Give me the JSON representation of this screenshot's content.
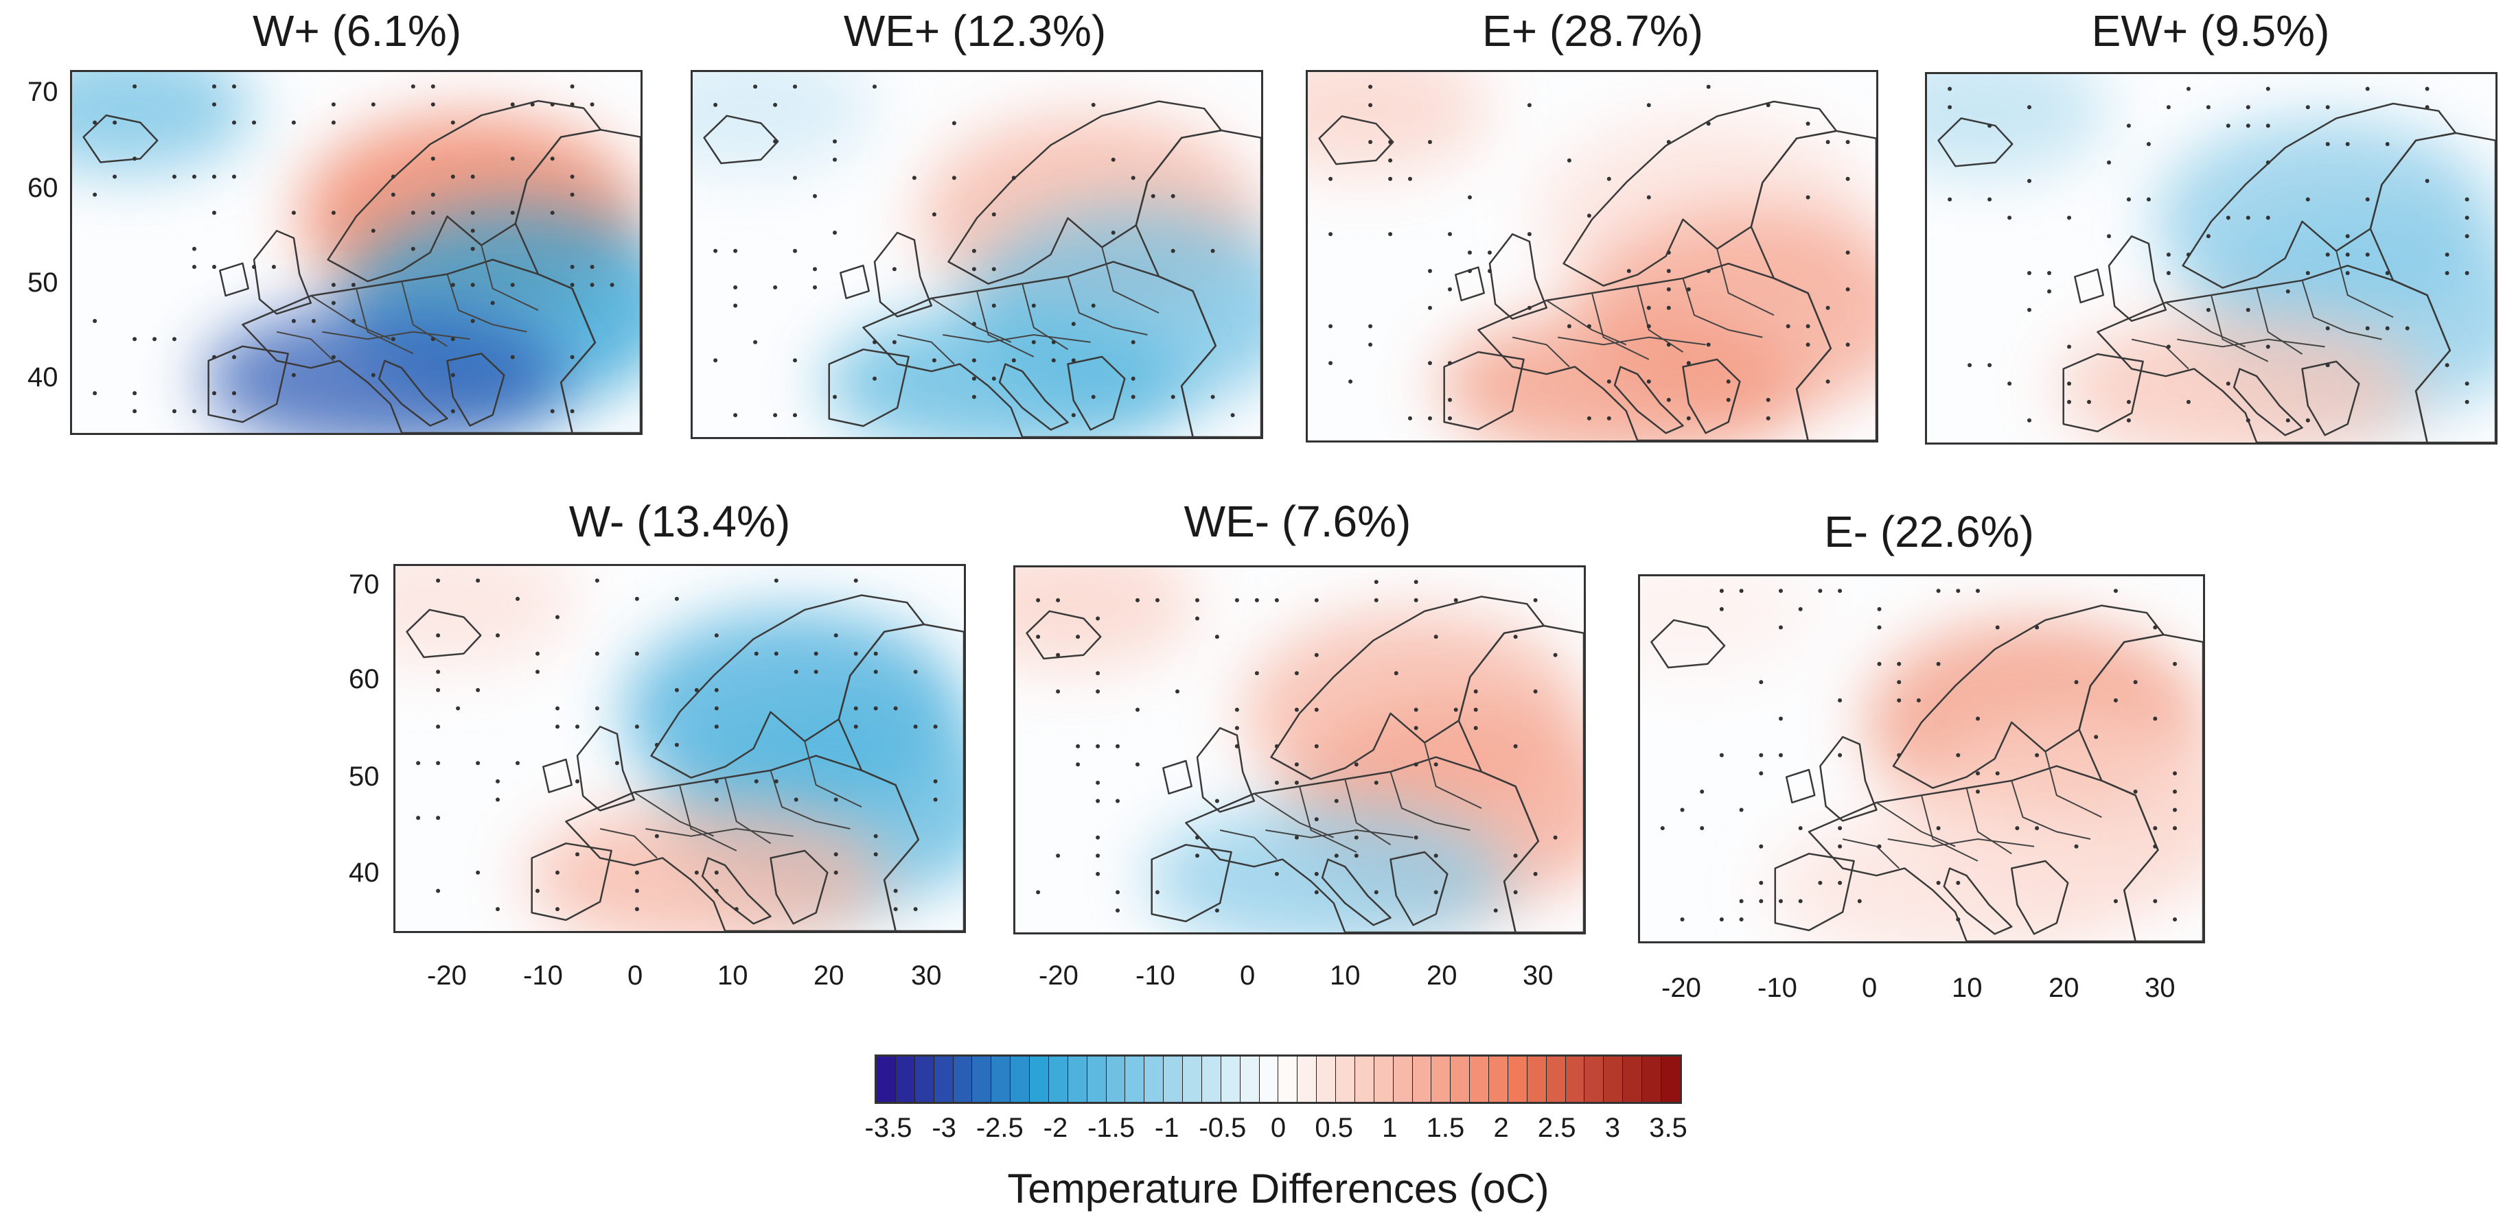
{
  "figure": {
    "panels": [
      {
        "id": "w-plus",
        "label": "W+ (6.1%)",
        "anomaly": [
          -0.6,
          0.9,
          -0.9,
          -1.2
        ]
      },
      {
        "id": "we-plus",
        "label": "WE+ (12.3%)",
        "anomaly": [
          -0.2,
          0.5,
          -0.6,
          -0.7
        ]
      },
      {
        "id": "e-plus",
        "label": "E+ (28.7%)",
        "anomaly": [
          0.3,
          0.2,
          0.6,
          0.7
        ]
      },
      {
        "id": "ew-plus",
        "label": "EW+ (9.5%)",
        "anomaly": [
          -0.3,
          -0.5,
          -0.5,
          0.4
        ]
      },
      {
        "id": "w-minus",
        "label": "W- (13.4%)",
        "anomaly": [
          0.2,
          -0.8,
          -0.7,
          0.5
        ]
      },
      {
        "id": "we-minus",
        "label": "WE- (7.6%)",
        "anomaly": [
          0.3,
          0.5,
          0.6,
          -0.5
        ]
      },
      {
        "id": "e-minus",
        "label": "E- (22.6%)",
        "anomaly": [
          0.1,
          0.7,
          0.3,
          0.2
        ]
      }
    ],
    "lat_ticks": [
      "70",
      "60",
      "50",
      "40"
    ],
    "lon_ticks": [
      "-20",
      "-10",
      "0",
      "10",
      "20",
      "30"
    ],
    "colorbar": {
      "title": "Temperature Differences (oC)",
      "labels": [
        "-3.5",
        "-3",
        "-2.5",
        "-2",
        "-1.5",
        "-1",
        "-0.5",
        "0",
        "0.5",
        "1",
        "1.5",
        "2",
        "2.5",
        "3",
        "3.5"
      ],
      "min": -3.5,
      "max": 3.5,
      "steps": 42,
      "neg_color": "#2a0f8f",
      "mid_neg_color": "#2aa2d6",
      "zero_color": "#ffffff",
      "mid_pos_color": "#f07a5a",
      "pos_color": "#8a0a0a"
    }
  }
}
